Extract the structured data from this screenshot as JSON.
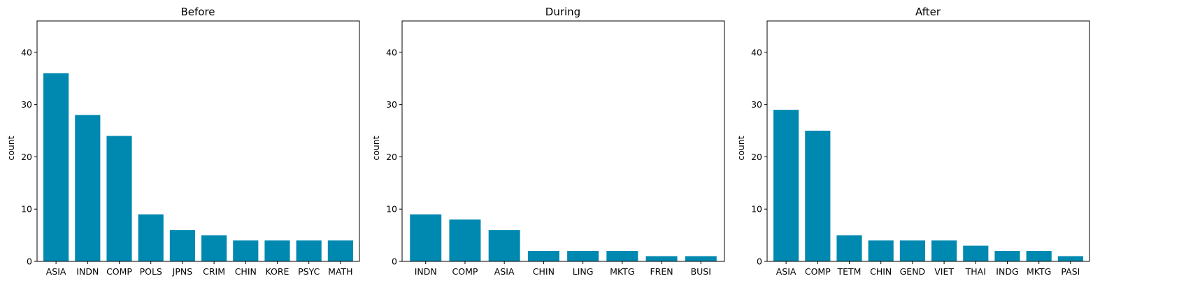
{
  "chart_data": [
    {
      "type": "bar",
      "title": "Before",
      "ylabel": "count",
      "xlabel": "",
      "ylim": [
        0,
        46
      ],
      "yticks": [
        0,
        10,
        20,
        30,
        40
      ],
      "categories": [
        "ASIA",
        "INDN",
        "COMP",
        "POLS",
        "JPNS",
        "CRIM",
        "CHIN",
        "KORE",
        "PSYC",
        "MATH"
      ],
      "values": [
        36,
        28,
        24,
        9,
        6,
        5,
        4,
        4,
        4,
        4
      ],
      "color": "#0089b0",
      "grid": false
    },
    {
      "type": "bar",
      "title": "During",
      "ylabel": "count",
      "xlabel": "",
      "ylim": [
        0,
        46
      ],
      "yticks": [
        0,
        10,
        20,
        30,
        40
      ],
      "categories": [
        "INDN",
        "COMP",
        "ASIA",
        "CHIN",
        "LING",
        "MKTG",
        "FREN",
        "BUSI"
      ],
      "values": [
        9,
        8,
        6,
        2,
        2,
        2,
        1,
        1
      ],
      "color": "#0089b0",
      "grid": false
    },
    {
      "type": "bar",
      "title": "After",
      "ylabel": "count",
      "xlabel": "",
      "ylim": [
        0,
        46
      ],
      "yticks": [
        0,
        10,
        20,
        30,
        40
      ],
      "categories": [
        "ASIA",
        "COMP",
        "TETM",
        "CHIN",
        "GEND",
        "VIET",
        "THAI",
        "INDG",
        "MKTG",
        "PASI"
      ],
      "values": [
        29,
        25,
        5,
        4,
        4,
        4,
        3,
        2,
        2,
        1
      ],
      "color": "#0089b0",
      "grid": false
    }
  ]
}
